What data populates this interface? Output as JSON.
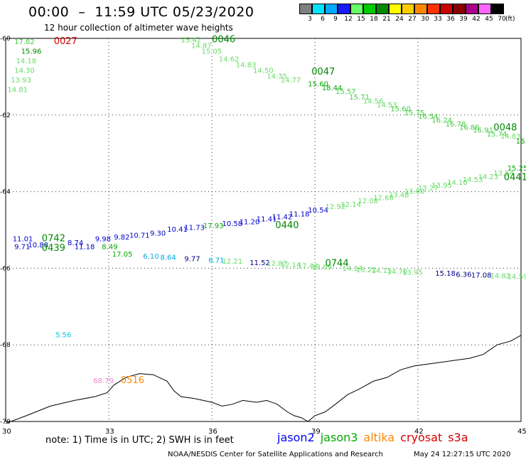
{
  "header": {
    "title": "00:00  –  11:59 UTC 05/23/2020",
    "subtitle": "12 hour collection of altimeter wave heights"
  },
  "legend": {
    "unit": "(ft)",
    "bins": [
      {
        "label": "3",
        "color": "#7f7f7f"
      },
      {
        "label": "6",
        "color": "#00e5ff"
      },
      {
        "label": "9",
        "color": "#00aaff"
      },
      {
        "label": "12",
        "color": "#1a1aff"
      },
      {
        "label": "15",
        "color": "#66ff66"
      },
      {
        "label": "18",
        "color": "#00cc00"
      },
      {
        "label": "21",
        "color": "#008800"
      },
      {
        "label": "24",
        "color": "#ffff00"
      },
      {
        "label": "27",
        "color": "#ffcc00"
      },
      {
        "label": "30",
        "color": "#ff8800"
      },
      {
        "label": "33",
        "color": "#ff3300"
      },
      {
        "label": "36",
        "color": "#cc0000"
      },
      {
        "label": "39",
        "color": "#880000"
      },
      {
        "label": "42",
        "color": "#aa0088"
      },
      {
        "label": "45",
        "color": "#ff66ff"
      },
      {
        "label": "70",
        "color": "#000000"
      }
    ]
  },
  "axes": {
    "lon_ticks": [
      "30",
      "33",
      "36",
      "39",
      "42",
      "45"
    ],
    "lat_ticks": [
      "-60",
      "-62",
      "-64",
      "-66",
      "-68",
      "-70"
    ]
  },
  "satellites": [
    {
      "name": "jason2",
      "color": "#0000ff"
    },
    {
      "name": "jason3",
      "color": "#00aa00"
    },
    {
      "name": "altika",
      "color": "#ff8800"
    },
    {
      "name": "cryosat",
      "color": "#dd0000"
    },
    {
      "name": "s3a",
      "color": "#cc0000"
    }
  ],
  "note": "note:  1) Time is in UTC; 2) SWH is in feet",
  "footer": {
    "source": "NOAA/NESDIS Center for Satellite Applications and Research",
    "timestamp": "May 24 12:27:15 UTC 2020"
  },
  "map_labels": [
    {
      "t": "0027",
      "lon": 31.4,
      "lat": -60.15,
      "c": "#dd0000",
      "s": 13
    },
    {
      "t": "17.82",
      "lon": 30.25,
      "lat": -60.15,
      "c": "#44cc44",
      "s": 10
    },
    {
      "t": "15.96",
      "lon": 30.45,
      "lat": -60.4,
      "c": "#008800",
      "s": 10
    },
    {
      "t": "14.18",
      "lon": 30.3,
      "lat": -60.65,
      "c": "#66dd66",
      "s": 10
    },
    {
      "t": "14.30",
      "lon": 30.25,
      "lat": -60.9,
      "c": "#66dd66",
      "s": 10
    },
    {
      "t": "13.93",
      "lon": 30.15,
      "lat": -61.15,
      "c": "#66dd66",
      "s": 10
    },
    {
      "t": "14.81",
      "lon": 30.05,
      "lat": -61.4,
      "c": "#66dd66",
      "s": 10
    },
    {
      "t": "0046",
      "lon": 36.0,
      "lat": -60.1,
      "c": "#008800",
      "s": 13
    },
    {
      "t": "15.42",
      "lon": 35.1,
      "lat": -60.1,
      "c": "#55dd55",
      "s": 10
    },
    {
      "t": "14.87",
      "lon": 35.4,
      "lat": -60.25,
      "c": "#66dd66",
      "s": 10
    },
    {
      "t": "15.05",
      "lon": 35.7,
      "lat": -60.4,
      "c": "#66dd66",
      "s": 10
    },
    {
      "t": "14.62",
      "lon": 36.2,
      "lat": -60.6,
      "c": "#66dd66",
      "s": 10
    },
    {
      "t": "14.83",
      "lon": 36.7,
      "lat": -60.75,
      "c": "#66dd66",
      "s": 10
    },
    {
      "t": "14.50",
      "lon": 37.2,
      "lat": -60.9,
      "c": "#66dd66",
      "s": 10
    },
    {
      "t": "14.35",
      "lon": 37.6,
      "lat": -61.05,
      "c": "#66dd66",
      "s": 10
    },
    {
      "t": "14.77",
      "lon": 38.0,
      "lat": -61.15,
      "c": "#66dd66",
      "s": 10
    },
    {
      "t": "0047",
      "lon": 38.9,
      "lat": -60.95,
      "c": "#008800",
      "s": 13
    },
    {
      "t": "15.60",
      "lon": 38.8,
      "lat": -61.25,
      "c": "#00aa00",
      "s": 10
    },
    {
      "t": "18.44",
      "lon": 39.2,
      "lat": -61.35,
      "c": "#00aa00",
      "s": 10
    },
    {
      "t": "15.57",
      "lon": 39.6,
      "lat": -61.45,
      "c": "#44cc44",
      "s": 10
    },
    {
      "t": "15.71",
      "lon": 40.0,
      "lat": -61.6,
      "c": "#44cc44",
      "s": 10
    },
    {
      "t": "14.56",
      "lon": 40.4,
      "lat": -61.7,
      "c": "#66dd66",
      "s": 10
    },
    {
      "t": "14.53",
      "lon": 40.8,
      "lat": -61.8,
      "c": "#66dd66",
      "s": 10
    },
    {
      "t": "15.60",
      "lon": 41.2,
      "lat": -61.9,
      "c": "#44cc44",
      "s": 10
    },
    {
      "t": "15.75",
      "lon": 41.6,
      "lat": -62.0,
      "c": "#44cc44",
      "s": 10
    },
    {
      "t": "16.54",
      "lon": 42.0,
      "lat": -62.1,
      "c": "#44cc44",
      "s": 10
    },
    {
      "t": "16.24",
      "lon": 42.4,
      "lat": -62.2,
      "c": "#44cc44",
      "s": 10
    },
    {
      "t": "16.78",
      "lon": 42.8,
      "lat": -62.3,
      "c": "#44cc44",
      "s": 10
    },
    {
      "t": "16.86",
      "lon": 43.2,
      "lat": -62.38,
      "c": "#44cc44",
      "s": 10
    },
    {
      "t": "16.91",
      "lon": 43.6,
      "lat": -62.46,
      "c": "#44cc44",
      "s": 10
    },
    {
      "t": "0048",
      "lon": 44.2,
      "lat": -62.4,
      "c": "#008800",
      "s": 13
    },
    {
      "t": "15.74",
      "lon": 44.0,
      "lat": -62.56,
      "c": "#44cc44",
      "s": 10
    },
    {
      "t": "14.83",
      "lon": 44.4,
      "lat": -62.62,
      "c": "#66dd66",
      "s": 10
    },
    {
      "t": "16.98",
      "lon": 44.85,
      "lat": -62.75,
      "c": "#00aa00",
      "s": 10
    },
    {
      "t": "16.47",
      "lon": 45.3,
      "lat": -62.8,
      "c": "#00aa00",
      "s": 10
    },
    {
      "t": "15.29",
      "lon": 45.7,
      "lat": -62.9,
      "c": "#44cc44",
      "s": 10
    },
    {
      "t": "11.01",
      "lon": 30.2,
      "lat": -65.3,
      "c": "#0000cc",
      "s": 10
    },
    {
      "t": "9.71",
      "lon": 30.25,
      "lat": -65.5,
      "c": "#0000cc",
      "s": 10
    },
    {
      "t": "10.88",
      "lon": 30.65,
      "lat": -65.45,
      "c": "#0000cc",
      "s": 10
    },
    {
      "t": "0742",
      "lon": 31.05,
      "lat": -65.3,
      "c": "#008800",
      "s": 13
    },
    {
      "t": "0439",
      "lon": 31.05,
      "lat": -65.55,
      "c": "#008800",
      "s": 13
    },
    {
      "t": "8.74",
      "lon": 31.8,
      "lat": -65.4,
      "c": "#0000cc",
      "s": 10
    },
    {
      "t": "11.18",
      "lon": 32.0,
      "lat": -65.5,
      "c": "#0000cc",
      "s": 10
    },
    {
      "t": "9.98",
      "lon": 32.6,
      "lat": -65.3,
      "c": "#0000cc",
      "s": 10
    },
    {
      "t": "8.49",
      "lon": 32.8,
      "lat": -65.5,
      "c": "#00aa00",
      "s": 10
    },
    {
      "t": "9.82",
      "lon": 33.15,
      "lat": -65.25,
      "c": "#0000cc",
      "s": 10
    },
    {
      "t": "10.71",
      "lon": 33.6,
      "lat": -65.2,
      "c": "#0000cc",
      "s": 10
    },
    {
      "t": "9.30",
      "lon": 34.2,
      "lat": -65.15,
      "c": "#0000cc",
      "s": 10
    },
    {
      "t": "10.41",
      "lon": 34.7,
      "lat": -65.05,
      "c": "#0000cc",
      "s": 10
    },
    {
      "t": "11.73",
      "lon": 35.2,
      "lat": -65.0,
      "c": "#0000cc",
      "s": 10
    },
    {
      "t": "17.93",
      "lon": 35.75,
      "lat": -64.95,
      "c": "#00aa00",
      "s": 10
    },
    {
      "t": "10.58",
      "lon": 36.3,
      "lat": -64.9,
      "c": "#0000cc",
      "s": 10
    },
    {
      "t": "11.20",
      "lon": 36.8,
      "lat": -64.85,
      "c": "#0000cc",
      "s": 10
    },
    {
      "t": "11.41",
      "lon": 37.3,
      "lat": -64.78,
      "c": "#0000cc",
      "s": 10
    },
    {
      "t": "11.42",
      "lon": 37.75,
      "lat": -64.72,
      "c": "#0000cc",
      "s": 10
    },
    {
      "t": "11.18",
      "lon": 38.25,
      "lat": -64.65,
      "c": "#0000cc",
      "s": 10
    },
    {
      "t": "0440",
      "lon": 37.85,
      "lat": -64.95,
      "c": "#008800",
      "s": 13
    },
    {
      "t": "10.54",
      "lon": 38.8,
      "lat": -64.55,
      "c": "#0000cc",
      "s": 10
    },
    {
      "t": "12.92",
      "lon": 39.3,
      "lat": -64.45,
      "c": "#66dd66",
      "s": 10
    },
    {
      "t": "12.14",
      "lon": 39.75,
      "lat": -64.4,
      "c": "#66dd66",
      "s": 10
    },
    {
      "t": "12.08",
      "lon": 40.25,
      "lat": -64.3,
      "c": "#66dd66",
      "s": 10
    },
    {
      "t": "12.68",
      "lon": 40.7,
      "lat": -64.22,
      "c": "#66dd66",
      "s": 10
    },
    {
      "t": "13.48",
      "lon": 41.15,
      "lat": -64.15,
      "c": "#66dd66",
      "s": 10
    },
    {
      "t": "13.60",
      "lon": 41.6,
      "lat": -64.05,
      "c": "#66dd66",
      "s": 10
    },
    {
      "t": "13.27",
      "lon": 42.0,
      "lat": -63.97,
      "c": "#66dd66",
      "s": 10
    },
    {
      "t": "13.95",
      "lon": 42.4,
      "lat": -63.9,
      "c": "#66dd66",
      "s": 10
    },
    {
      "t": "14.10",
      "lon": 42.85,
      "lat": -63.82,
      "c": "#66dd66",
      "s": 10
    },
    {
      "t": "14.53",
      "lon": 43.3,
      "lat": -63.75,
      "c": "#66dd66",
      "s": 10
    },
    {
      "t": "14.23",
      "lon": 43.75,
      "lat": -63.67,
      "c": "#66dd66",
      "s": 10
    },
    {
      "t": "13.54",
      "lon": 44.2,
      "lat": -63.58,
      "c": "#66dd66",
      "s": 10
    },
    {
      "t": "15.25",
      "lon": 44.6,
      "lat": -63.45,
      "c": "#00aa00",
      "s": 10
    },
    {
      "t": "0441",
      "lon": 44.5,
      "lat": -63.7,
      "c": "#008800",
      "s": 13
    },
    {
      "t": "14.64",
      "lon": 45.1,
      "lat": -63.35,
      "c": "#66dd66",
      "s": 10
    },
    {
      "t": "17.05",
      "lon": 33.1,
      "lat": -65.7,
      "c": "#00aa00",
      "s": 10
    },
    {
      "t": "6.10",
      "lon": 34.0,
      "lat": -65.75,
      "c": "#00aadd",
      "s": 10
    },
    {
      "t": "8.64",
      "lon": 34.5,
      "lat": -65.78,
      "c": "#00aadd",
      "s": 10
    },
    {
      "t": "9.77",
      "lon": 35.2,
      "lat": -65.82,
      "c": "#000088",
      "s": 10
    },
    {
      "t": "6.71",
      "lon": 35.9,
      "lat": -65.85,
      "c": "#00aadd",
      "s": 10
    },
    {
      "t": "12.21",
      "lon": 36.3,
      "lat": -65.88,
      "c": "#66dd66",
      "s": 10
    },
    {
      "t": "11.52",
      "lon": 37.1,
      "lat": -65.92,
      "c": "#000088",
      "s": 10
    },
    {
      "t": "12.87",
      "lon": 37.6,
      "lat": -65.94,
      "c": "#66dd66",
      "s": 10
    },
    {
      "t": "12.14",
      "lon": 38.0,
      "lat": -65.97,
      "c": "#66dd66",
      "s": 10
    },
    {
      "t": "17.44",
      "lon": 38.5,
      "lat": -66.0,
      "c": "#66dd66",
      "s": 10
    },
    {
      "t": "13.69",
      "lon": 38.9,
      "lat": -66.03,
      "c": "#66dd66",
      "s": 10
    },
    {
      "t": "0744",
      "lon": 39.3,
      "lat": -65.95,
      "c": "#008800",
      "s": 13
    },
    {
      "t": "14.14",
      "lon": 39.8,
      "lat": -66.07,
      "c": "#66dd66",
      "s": 10
    },
    {
      "t": "13.21",
      "lon": 40.2,
      "lat": -66.1,
      "c": "#66dd66",
      "s": 10
    },
    {
      "t": "14.15",
      "lon": 40.65,
      "lat": -66.12,
      "c": "#66dd66",
      "s": 10
    },
    {
      "t": "14.70",
      "lon": 41.1,
      "lat": -66.15,
      "c": "#66dd66",
      "s": 10
    },
    {
      "t": "13.95",
      "lon": 41.55,
      "lat": -66.17,
      "c": "#66dd66",
      "s": 10
    },
    {
      "t": "15.18",
      "lon": 42.5,
      "lat": -66.2,
      "c": "#000088",
      "s": 10
    },
    {
      "t": "6.36",
      "lon": 43.1,
      "lat": -66.22,
      "c": "#000088",
      "s": 10
    },
    {
      "t": "17.08",
      "lon": 43.55,
      "lat": -66.24,
      "c": "#000088",
      "s": 10
    },
    {
      "t": "14.82",
      "lon": 44.1,
      "lat": -66.26,
      "c": "#66dd66",
      "s": 10
    },
    {
      "t": "14.59",
      "lon": 44.6,
      "lat": -66.28,
      "c": "#66dd66",
      "s": 10
    },
    {
      "t": "5.56",
      "lon": 31.45,
      "lat": -67.8,
      "c": "#00ccdd",
      "s": 10
    },
    {
      "t": "68.79",
      "lon": 32.55,
      "lat": -69.0,
      "c": "#ee88cc",
      "s": 10
    },
    {
      "t": "0516",
      "lon": 33.35,
      "lat": -69.0,
      "c": "#ff8800",
      "s": 13
    }
  ]
}
